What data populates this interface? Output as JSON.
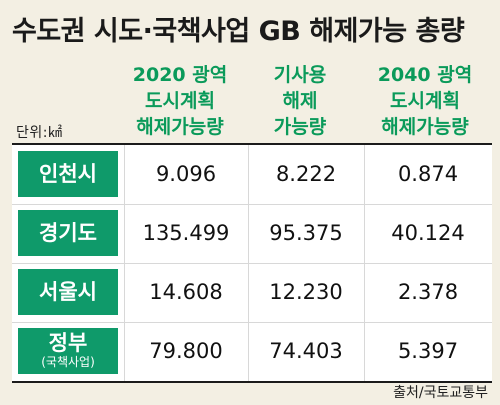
{
  "chart_data": {
    "type": "table",
    "title": "수도권 시도·국책사업 GB 해제가능 총량",
    "unit": "단위:㎢",
    "columns": [
      [
        "2020 광역",
        "도시계획",
        "해제가능량"
      ],
      [
        "기사용",
        "해제",
        "가능량"
      ],
      [
        "2040 광역",
        "도시계획",
        "해제가능량"
      ]
    ],
    "rows": [
      {
        "label": "인천시",
        "sublabel": "",
        "values": [
          "9.096",
          "8.222",
          "0.874"
        ]
      },
      {
        "label": "경기도",
        "sublabel": "",
        "values": [
          "135.499",
          "95.375",
          "40.124"
        ]
      },
      {
        "label": "서울시",
        "sublabel": "",
        "values": [
          "14.608",
          "12.230",
          "2.378"
        ]
      },
      {
        "label": "정부",
        "sublabel": "(국책사업)",
        "values": [
          "79.800",
          "74.403",
          "5.397"
        ]
      }
    ],
    "source": "출처/국토교통부"
  },
  "colors": {
    "background": "#f3efe3",
    "accent_green": "#0f9a6a",
    "header_green": "#0a9a5a",
    "table_bg": "#ffffff",
    "text": "#111111"
  }
}
